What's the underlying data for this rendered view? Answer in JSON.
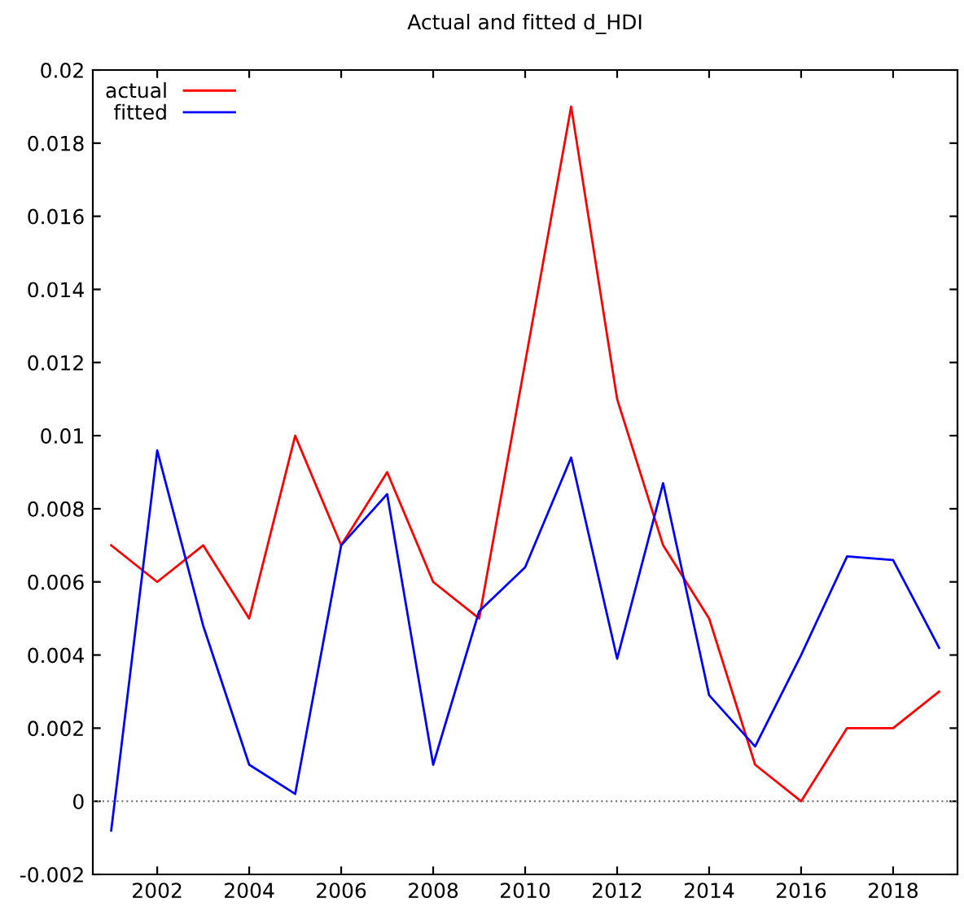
{
  "chart_data": {
    "type": "line",
    "title": "Actual and fitted d_HDI",
    "x": [
      2001,
      2002,
      2003,
      2004,
      2005,
      2006,
      2007,
      2008,
      2009,
      2010,
      2011,
      2012,
      2013,
      2014,
      2015,
      2016,
      2017,
      2018,
      2019
    ],
    "series": [
      {
        "name": "actual",
        "color": "#ff0000",
        "values": [
          0.007,
          0.006,
          0.007,
          0.005,
          0.01,
          0.007,
          0.009,
          0.006,
          0.005,
          0.012,
          0.019,
          0.011,
          0.007,
          0.005,
          0.001,
          0.0,
          0.002,
          0.002,
          0.003
        ]
      },
      {
        "name": "fitted",
        "color": "#0000ff",
        "values": [
          -0.0008,
          0.0096,
          0.0048,
          0.001,
          0.0002,
          0.007,
          0.0084,
          0.001,
          0.0052,
          0.0064,
          0.0094,
          0.0039,
          0.0087,
          0.0029,
          0.0015,
          0.004,
          0.0067,
          0.0066,
          0.0042
        ]
      }
    ],
    "xlim": [
      2000.6,
      2019.4
    ],
    "xticks": [
      2002,
      2004,
      2006,
      2008,
      2010,
      2012,
      2014,
      2016,
      2018
    ],
    "ylim": [
      -0.002,
      0.02
    ],
    "yticks": [
      -0.002,
      0,
      0.002,
      0.004,
      0.006,
      0.008,
      0.01,
      0.012,
      0.014,
      0.016,
      0.018,
      0.02
    ],
    "ref_lines": [
      {
        "axis": "y",
        "value": 0,
        "color": "#808080",
        "line_style": "dotted"
      }
    ],
    "legend": "top left",
    "grid": false,
    "marker": "none",
    "line_style": "solid"
  }
}
